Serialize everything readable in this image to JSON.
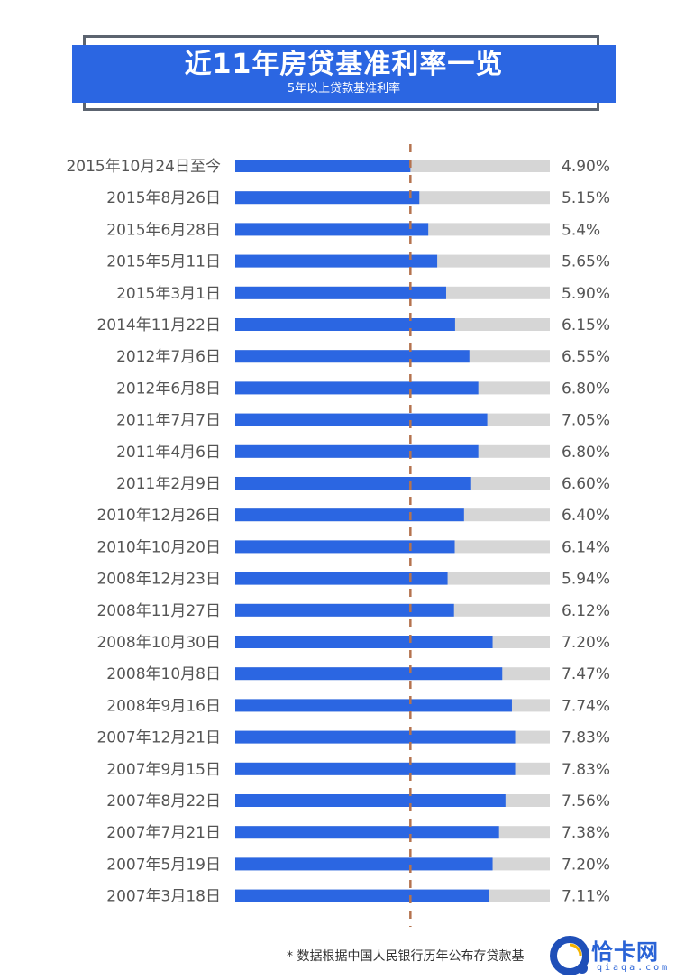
{
  "header": {
    "title": "近11年房贷基准利率一览",
    "subtitle": "5年以上贷款基准利率"
  },
  "chart_data": {
    "type": "bar",
    "orientation": "horizontal",
    "title": "近11年房贷基准利率一览",
    "subtitle": "5年以上贷款基准利率",
    "xlabel": "",
    "ylabel": "",
    "xlim": [
      0,
      8.8
    ],
    "reference_line": {
      "value": 4.9,
      "style": "dashed"
    },
    "value_suffix": "%",
    "categories": [
      "2015年10月24日至今",
      "2015年8月26日",
      "2015年6月28日",
      "2015年5月11日",
      "2015年3月1日",
      "2014年11月22日",
      "2012年7月6日",
      "2012年6月8日",
      "2011年7月7日",
      "2011年4月6日",
      "2011年2月9日",
      "2010年12月26日",
      "2010年10月20日",
      "2008年12月23日",
      "2008年11月27日",
      "2008年10月30日",
      "2008年10月8日",
      "2008年9月16日",
      "2007年12月21日",
      "2007年9月15日",
      "2007年8月22日",
      "2007年7月21日",
      "2007年5月19日",
      "2007年3月18日"
    ],
    "values": [
      4.9,
      5.15,
      5.4,
      5.65,
      5.9,
      6.15,
      6.55,
      6.8,
      7.05,
      6.8,
      6.6,
      6.4,
      6.14,
      5.94,
      6.12,
      7.2,
      7.47,
      7.74,
      7.83,
      7.83,
      7.56,
      7.38,
      7.2,
      7.11
    ],
    "value_labels": [
      "4.90%",
      "5.15%",
      "5.4%",
      "5.65%",
      "5.90%",
      "6.15%",
      "6.55%",
      "6.80%",
      "7.05%",
      "6.80%",
      "6.60%",
      "6.40%",
      "6.14%",
      "5.94%",
      "6.12%",
      "7.20%",
      "7.47%",
      "7.74%",
      "7.83%",
      "7.83%",
      "7.56%",
      "7.38%",
      "7.20%",
      "7.11%"
    ],
    "colors": {
      "bar": "#2b66e2",
      "track": "#d6d6d6",
      "reference": "#b5734f"
    }
  },
  "footer": {
    "note": "* 数据根据中国人民银行历年公布存贷款基",
    "logo_cn": "恰卡网",
    "logo_en": "qiaqa.com"
  }
}
